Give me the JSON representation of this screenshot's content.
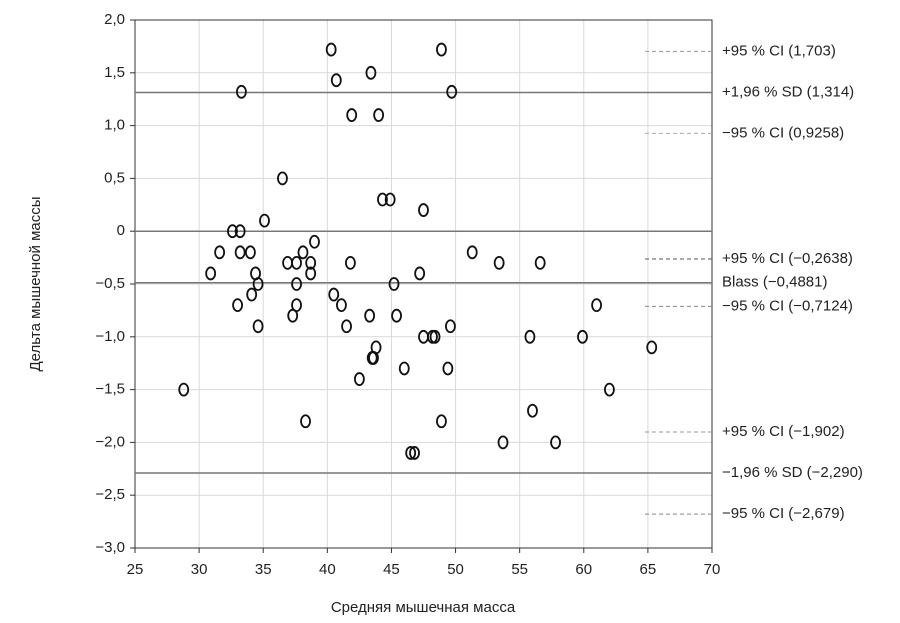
{
  "chart_data": {
    "type": "scatter",
    "x_label": "Средняя мышечная масса",
    "y_label": "Дельта мышечной массы",
    "xlim": [
      25,
      70
    ],
    "ylim": [
      -3.0,
      2.0
    ],
    "xticks": [
      25,
      30,
      35,
      40,
      45,
      50,
      55,
      60,
      65,
      70
    ],
    "yticks": [
      {
        "value": 2.0,
        "label": "2,0"
      },
      {
        "value": 1.5,
        "label": "1,5"
      },
      {
        "value": 1.0,
        "label": "1,0"
      },
      {
        "value": 0.5,
        "label": "0,5"
      },
      0,
      {
        "value": -0.5,
        "label": "−0,5"
      },
      {
        "value": -1.0,
        "label": "−1,0"
      },
      {
        "value": -1.5,
        "label": "−1,5"
      },
      {
        "value": -2.0,
        "label": "−2,0"
      },
      {
        "value": -2.5,
        "label": "−2,5"
      },
      {
        "value": -3.0,
        "label": "−3,0"
      }
    ],
    "grid": true,
    "color": "#111111",
    "x": [
      28.8,
      30.9,
      31.6,
      32.6,
      33.2,
      33.2,
      33.0,
      33.3,
      34.0,
      34.1,
      34.4,
      34.6,
      34.6,
      35.1,
      36.5,
      36.9,
      37.6,
      37.6,
      37.6,
      37.3,
      38.1,
      38.7,
      38.7,
      39.0,
      38.3,
      40.3,
      40.7,
      40.5,
      41.1,
      41.5,
      41.8,
      41.9,
      42.5,
      43.4,
      43.3,
      43.5,
      43.6,
      43.8,
      44.0,
      44.3,
      44.9,
      45.2,
      45.4,
      46.0,
      46.5,
      46.8,
      47.2,
      47.5,
      47.5,
      48.2,
      48.4,
      48.9,
      48.9,
      49.4,
      49.6,
      49.7,
      51.3,
      53.4,
      53.7,
      55.8,
      56.0,
      56.6,
      57.8,
      59.9,
      61.0,
      62.0,
      65.3
    ],
    "values": [
      -1.5,
      -0.4,
      -0.2,
      0.0,
      0.0,
      -0.2,
      -0.7,
      1.32,
      -0.2,
      -0.6,
      -0.4,
      -0.5,
      -0.9,
      0.1,
      0.5,
      -0.3,
      -0.3,
      -0.5,
      -0.7,
      -0.8,
      -0.2,
      -0.3,
      -0.4,
      -0.1,
      -1.8,
      1.72,
      1.43,
      -0.6,
      -0.7,
      -0.9,
      -0.3,
      1.1,
      -1.4,
      1.5,
      -0.8,
      -1.2,
      -1.2,
      -1.1,
      1.1,
      0.3,
      0.3,
      -0.5,
      -0.8,
      -1.3,
      -2.1,
      -2.1,
      -0.4,
      0.2,
      -1.0,
      -1.0,
      -1.0,
      1.72,
      -1.8,
      -1.3,
      -0.9,
      1.32,
      -0.2,
      -0.3,
      -2.0,
      -1.0,
      -1.7,
      -0.3,
      -2.0,
      -1.0,
      -0.7,
      -1.5,
      -1.1
    ],
    "reference_lines": [
      {
        "value": 1.703,
        "label": "+95 % CI (1,703)",
        "style": "dashed",
        "color": "#999999"
      },
      {
        "value": 1.314,
        "label": "+1,96 % SD (1,314)",
        "style": "solid",
        "color": "#777777"
      },
      {
        "value": 0.9258,
        "label": "−95 % CI (0,9258)",
        "style": "dashed",
        "color": "#aaaaaa"
      },
      {
        "value": 0,
        "style": "solid",
        "color": "#777777"
      },
      {
        "value": -0.2638,
        "label": "+95 % CI (−0,2638)",
        "style": "dashed",
        "color": "#555555"
      },
      {
        "value": -0.4881,
        "label": "Blass (−0,4881)",
        "style": "solid",
        "color": "#777777"
      },
      {
        "value": -0.7124,
        "label": "−95 % CI (−0,7124)",
        "style": "dashed",
        "color": "#888888"
      },
      {
        "value": -1.902,
        "label": "+95 % CI (−1,902)",
        "style": "dashed",
        "color": "#999999"
      },
      {
        "value": -2.29,
        "label": "−1,96 % SD (−2,290)",
        "style": "solid",
        "color": "#777777"
      },
      {
        "value": -2.679,
        "label": "−95 % CI (−2,679)",
        "style": "dashed",
        "color": "#888888"
      }
    ]
  }
}
